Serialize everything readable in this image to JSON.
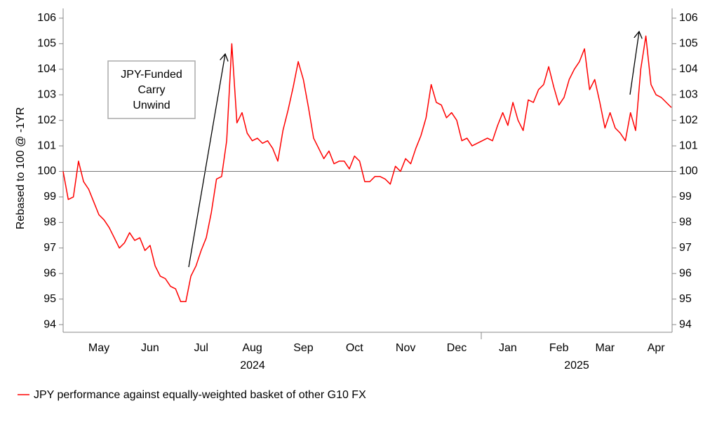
{
  "chart_data": {
    "type": "line",
    "y_label": "Rebased to 100 @ -1YR",
    "categories": [
      null,
      null,
      null,
      null,
      null,
      null,
      null,
      "May",
      null,
      null,
      null,
      null,
      null,
      null,
      null,
      null,
      null,
      "Jun",
      null,
      null,
      null,
      null,
      null,
      null,
      null,
      null,
      null,
      "Jul",
      null,
      null,
      null,
      null,
      null,
      null,
      null,
      null,
      null,
      "Aug",
      null,
      null,
      null,
      null,
      null,
      null,
      null,
      null,
      null,
      "Sep",
      null,
      null,
      null,
      null,
      null,
      null,
      null,
      null,
      null,
      "Oct",
      null,
      null,
      null,
      null,
      null,
      null,
      null,
      null,
      null,
      "Nov",
      null,
      null,
      null,
      null,
      null,
      null,
      null,
      null,
      null,
      "Dec",
      null,
      null,
      null,
      null,
      null,
      null,
      null,
      null,
      null,
      "Jan",
      null,
      null,
      null,
      null,
      null,
      null,
      null,
      null,
      null,
      "Feb",
      null,
      null,
      null,
      null,
      null,
      null,
      null,
      null,
      "Mar",
      null,
      null,
      null,
      null,
      null,
      null,
      null,
      null,
      null,
      "Apr",
      null,
      null,
      null
    ],
    "year_labels": [
      "2024",
      "2025"
    ],
    "series": [
      {
        "name": "JPY performance against equally-weighted basket of other G10 FX",
        "color": "#ff0000",
        "values": [
          100,
          98.9,
          99.0,
          100.4,
          99.6,
          99.3,
          98.8,
          98.3,
          98.1,
          97.8,
          97.4,
          97.0,
          97.2,
          97.6,
          97.3,
          97.4,
          96.9,
          97.1,
          96.3,
          95.9,
          95.8,
          95.5,
          95.4,
          94.9,
          94.9,
          95.9,
          96.3,
          96.9,
          97.4,
          98.4,
          99.7,
          99.8,
          101.2,
          105.0,
          101.9,
          102.3,
          101.5,
          101.2,
          101.3,
          101.1,
          101.2,
          100.9,
          100.4,
          101.6,
          102.4,
          103.3,
          104.3,
          103.6,
          102.5,
          101.3,
          100.9,
          100.5,
          100.8,
          100.3,
          100.4,
          100.4,
          100.1,
          100.6,
          100.4,
          99.6,
          99.6,
          99.8,
          99.8,
          99.7,
          99.5,
          100.2,
          100.0,
          100.5,
          100.3,
          100.9,
          101.4,
          102.1,
          103.4,
          102.7,
          102.6,
          102.1,
          102.3,
          102.0,
          101.2,
          101.3,
          101.0,
          101.1,
          101.2,
          101.3,
          101.2,
          101.8,
          102.3,
          101.8,
          102.7,
          102.0,
          101.6,
          102.8,
          102.7,
          103.2,
          103.4,
          104.1,
          103.3,
          102.6,
          102.9,
          103.6,
          104.0,
          104.3,
          104.8,
          103.2,
          103.6,
          102.7,
          101.7,
          102.3,
          101.7,
          101.5,
          101.2,
          102.3,
          101.6,
          104.0,
          105.3,
          103.4,
          103.0,
          102.9,
          102.7,
          102.5
        ]
      }
    ],
    "ylim": [
      93.7,
      106.3
    ],
    "yticks": [
      94,
      95,
      96,
      97,
      98,
      99,
      100,
      101,
      102,
      103,
      104,
      105,
      106
    ],
    "y2lim": [
      93.7,
      106.3
    ],
    "y2ticks": [
      94,
      95,
      96,
      97,
      98,
      99,
      100,
      101,
      102,
      103,
      104,
      105,
      106
    ],
    "reference_line": 100,
    "annotation": [
      "JPY-Funded",
      "Carry",
      "Unwind"
    ]
  }
}
